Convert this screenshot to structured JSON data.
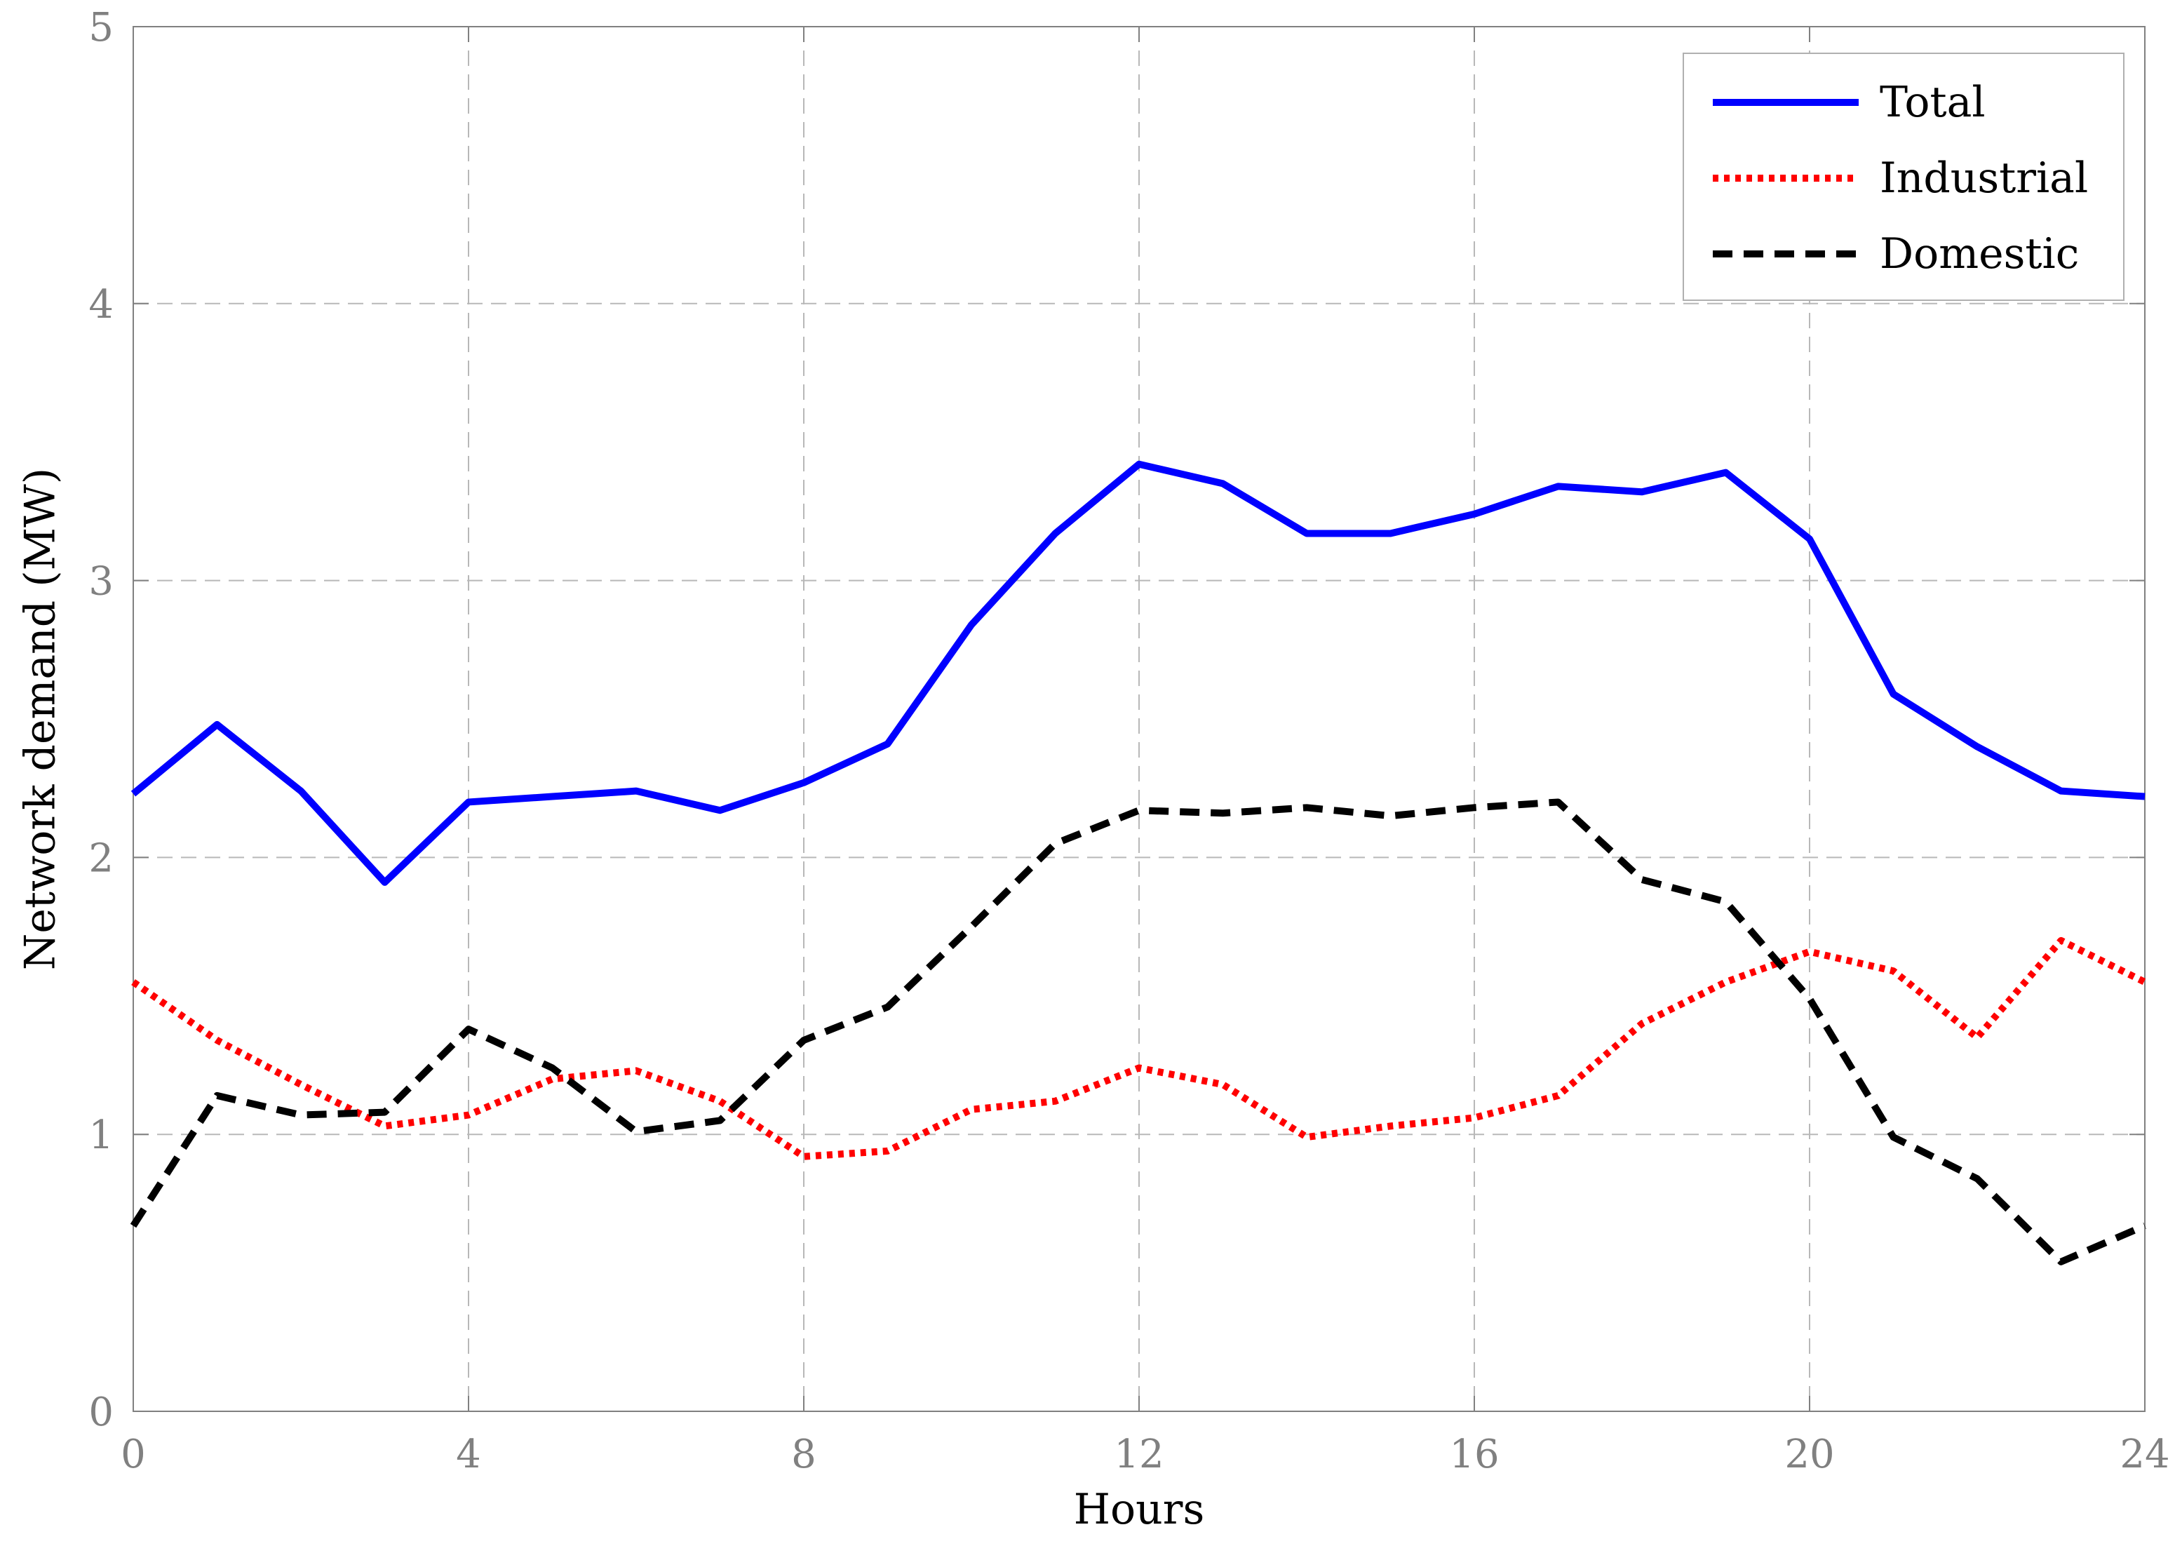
{
  "chart_data": {
    "type": "line",
    "xlabel": "Hours",
    "ylabel": "Network demand (MW)",
    "xlim": [
      0,
      24
    ],
    "ylim": [
      0,
      5
    ],
    "xticks": [
      0,
      4,
      8,
      12,
      16,
      20,
      24
    ],
    "yticks": [
      0,
      1,
      2,
      3,
      4,
      5
    ],
    "grid": true,
    "legend_position": "top-right",
    "x": [
      0,
      1,
      2,
      3,
      4,
      5,
      6,
      7,
      8,
      9,
      10,
      11,
      12,
      13,
      14,
      15,
      16,
      17,
      18,
      19,
      20,
      21,
      22,
      23,
      24
    ],
    "series": [
      {
        "name": "Total",
        "color": "#0000ff",
        "style": "solid",
        "values": [
          2.23,
          2.48,
          2.24,
          1.91,
          2.2,
          2.22,
          2.24,
          2.17,
          2.27,
          2.41,
          2.84,
          3.17,
          3.42,
          3.35,
          3.17,
          3.17,
          3.24,
          3.34,
          3.32,
          3.39,
          3.15,
          2.59,
          2.4,
          2.24,
          2.22
        ]
      },
      {
        "name": "Industrial",
        "color": "#ff0000",
        "style": "dotted",
        "values": [
          1.55,
          1.34,
          1.18,
          1.03,
          1.07,
          1.2,
          1.23,
          1.12,
          0.92,
          0.94,
          1.09,
          1.12,
          1.24,
          1.18,
          0.99,
          1.03,
          1.06,
          1.14,
          1.4,
          1.55,
          1.66,
          1.59,
          1.35,
          1.7,
          1.55
        ]
      },
      {
        "name": "Domestic",
        "color": "#000000",
        "style": "dashed",
        "values": [
          0.67,
          1.14,
          1.07,
          1.08,
          1.38,
          1.24,
          1.01,
          1.05,
          1.34,
          1.46,
          1.75,
          2.05,
          2.17,
          2.16,
          2.18,
          2.15,
          2.18,
          2.2,
          1.92,
          1.84,
          1.49,
          0.99,
          0.84,
          0.54,
          0.67
        ]
      }
    ]
  }
}
